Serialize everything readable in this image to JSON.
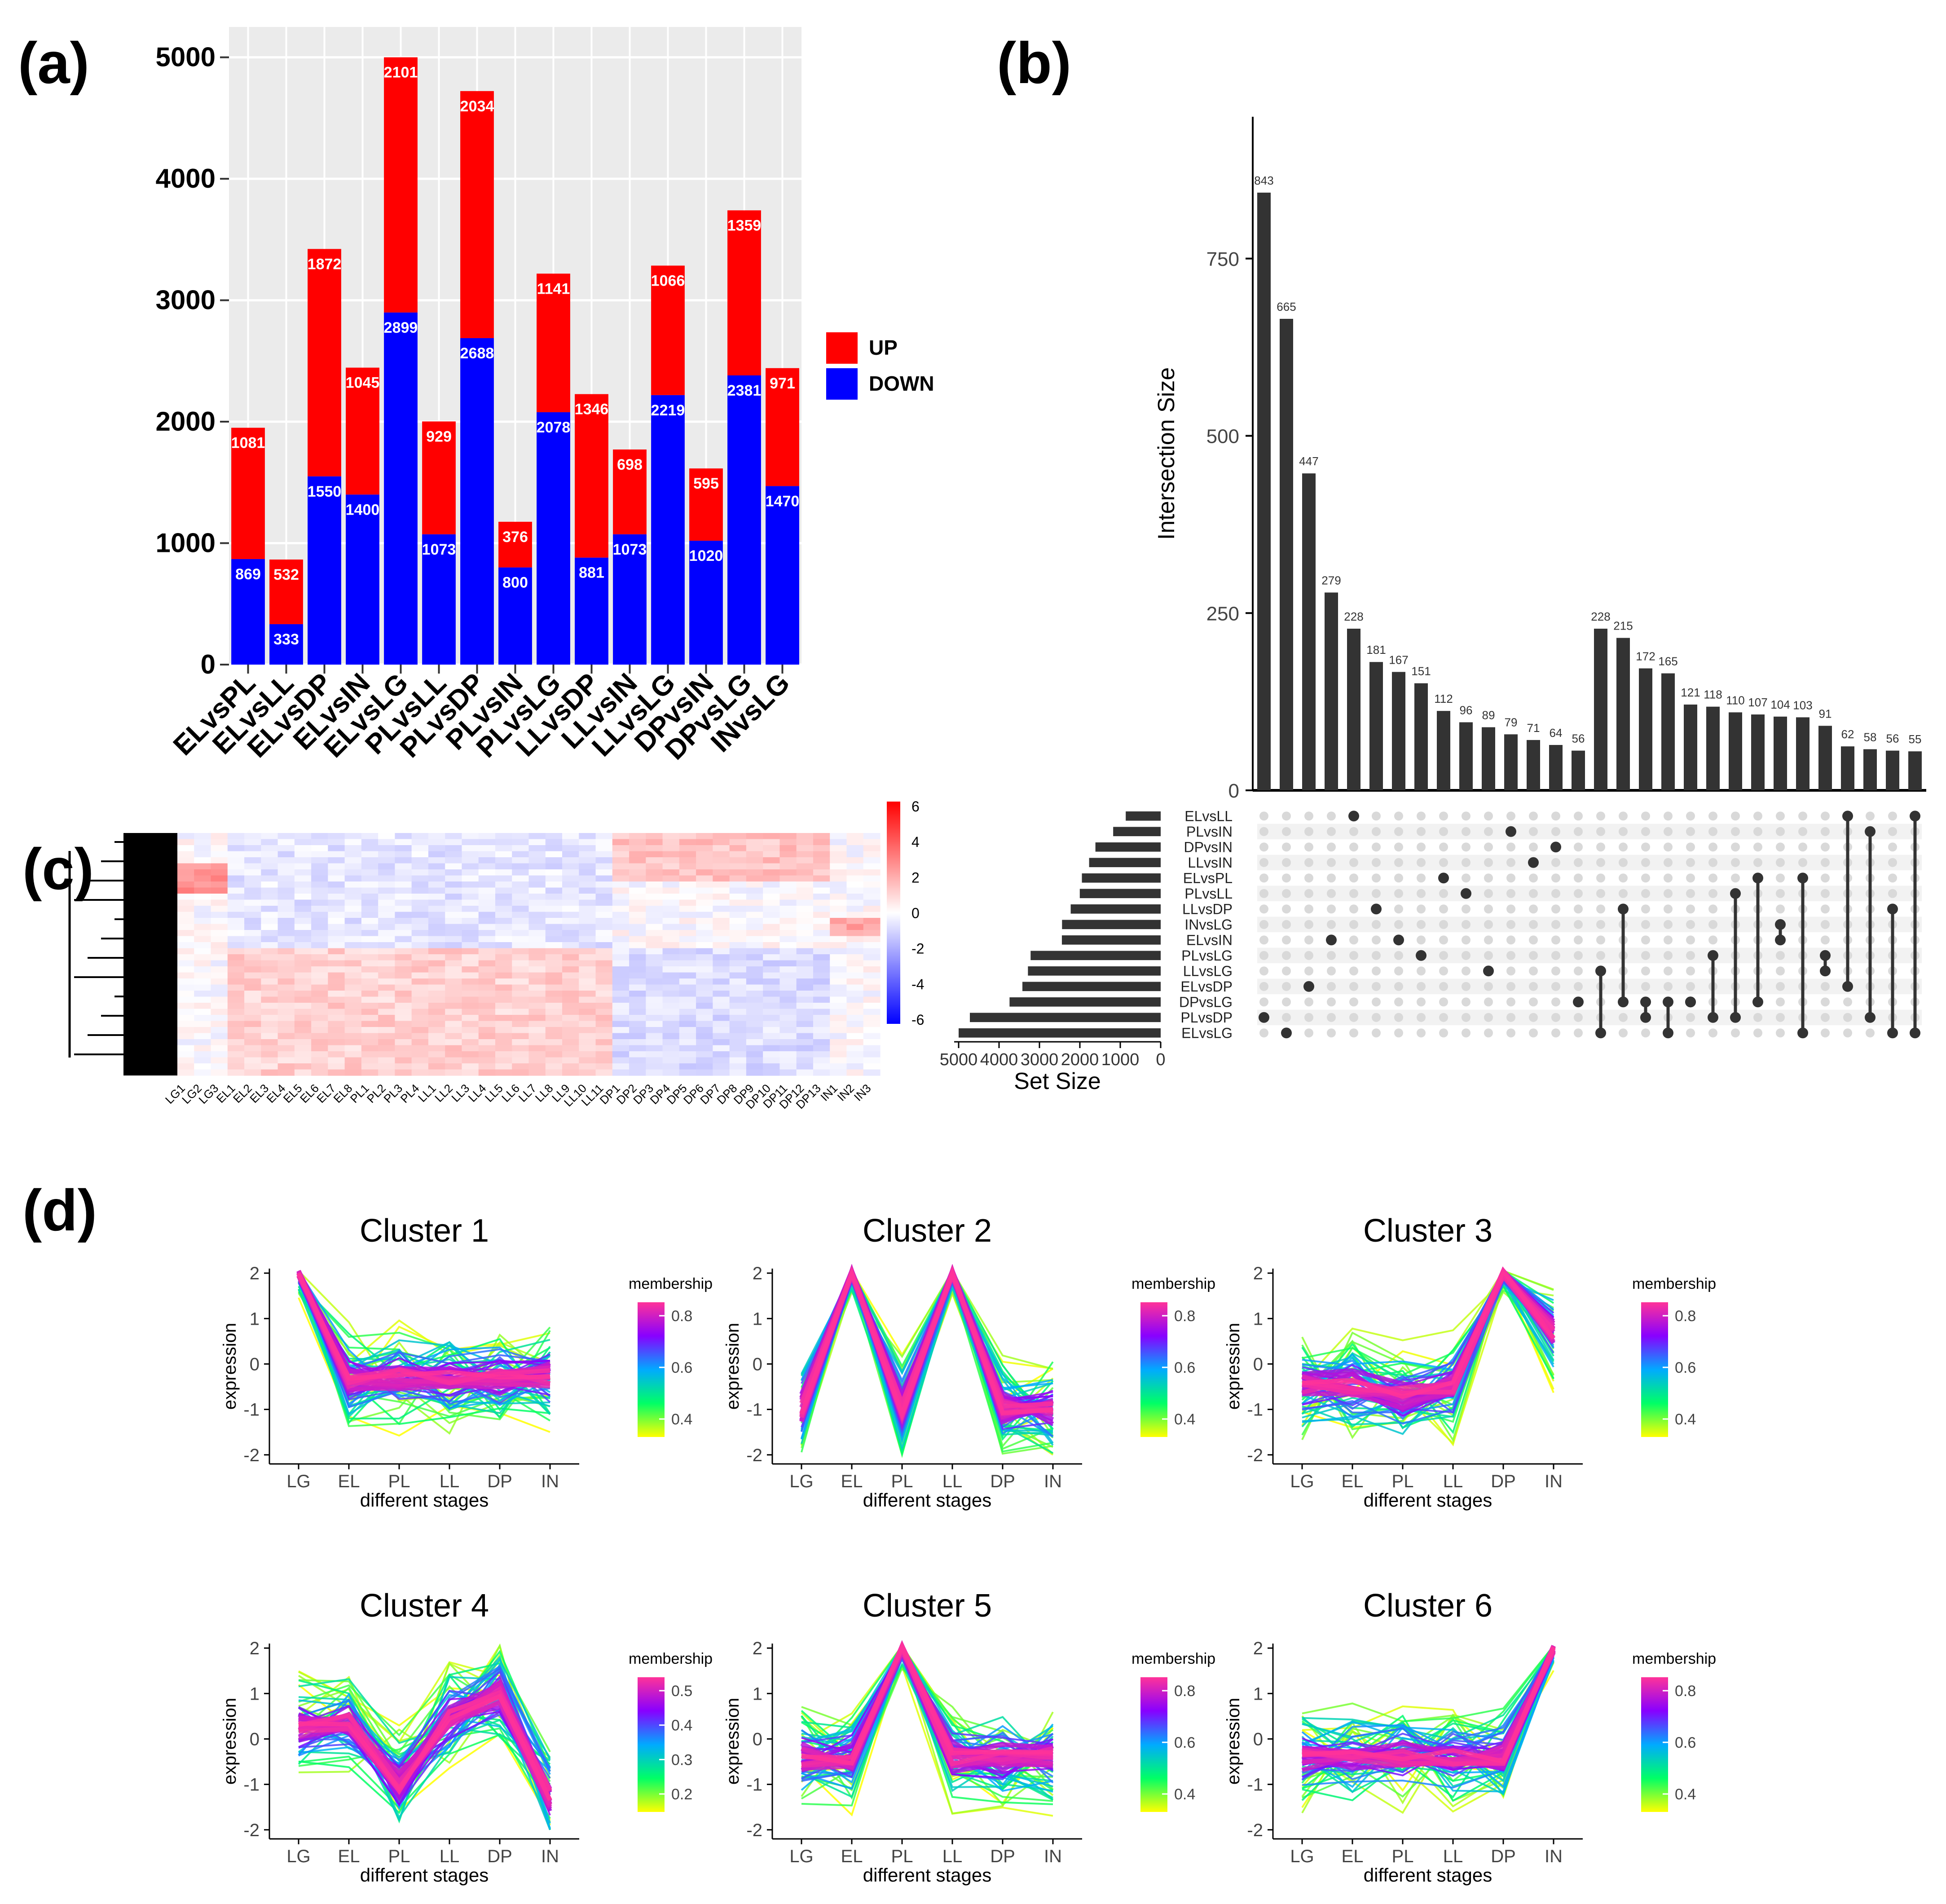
{
  "panel_labels": {
    "a": "(a)",
    "b": "(b)",
    "c": "(c)",
    "d": "(d)"
  },
  "colors": {
    "up": "#ff0000",
    "down": "#0000ff",
    "panel_bg": "#ebebeb",
    "bar_dark": "#333333",
    "dot_off": "#d9d9d9"
  },
  "chart_data": [
    {
      "id": "a",
      "type": "bar",
      "stacked": true,
      "categories": [
        "ELvsPL",
        "ELvsLL",
        "ELvsDP",
        "ELvsIN",
        "ELvsLG",
        "PLvsLL",
        "PLvsDP",
        "PLvsIN",
        "PLvsLG",
        "LLvsDP",
        "LLvsIN",
        "LLvsLG",
        "DPvsIN",
        "DPvsLG",
        "INvsLG"
      ],
      "series": [
        {
          "name": "DOWN",
          "values": [
            869,
            333,
            1550,
            1400,
            2899,
            1073,
            2688,
            800,
            2078,
            881,
            1073,
            2219,
            1020,
            2381,
            1470
          ]
        },
        {
          "name": "UP",
          "values": [
            1081,
            532,
            1872,
            1045,
            2101,
            929,
            2034,
            376,
            1141,
            1346,
            698,
            1066,
            595,
            1359,
            971
          ]
        }
      ],
      "yticks": [
        "0",
        "1000",
        "2000",
        "3000",
        "4000",
        "5000"
      ],
      "ylim": [
        0,
        5250
      ],
      "legend": [
        "UP",
        "DOWN"
      ],
      "title": "",
      "xlabel": "",
      "ylabel": ""
    },
    {
      "id": "b",
      "type": "bar",
      "subtype": "upset",
      "ylabel": "Intersection Size",
      "yticks": [
        "0",
        "250",
        "500",
        "750"
      ],
      "ylim": [
        0,
        950
      ],
      "values": [
        843,
        665,
        447,
        279,
        228,
        181,
        167,
        151,
        112,
        96,
        89,
        79,
        71,
        64,
        56,
        228,
        215,
        172,
        165,
        121,
        118,
        110,
        107,
        104,
        103,
        91,
        62,
        58,
        56,
        55
      ],
      "sets": [
        "ELvsLL",
        "PLvsIN",
        "DPvsIN",
        "LLvsIN",
        "ELvsPL",
        "PLvsLL",
        "LLvsDP",
        "INvsLG",
        "ELvsIN",
        "PLvsLG",
        "LLvsLG",
        "ELvsDP",
        "DPvsLG",
        "PLvsDP",
        "ELvsLG"
      ],
      "set_sizes": [
        865,
        1176,
        1615,
        1771,
        1950,
        2002,
        2227,
        2441,
        2445,
        3219,
        3285,
        3422,
        3740,
        4722,
        5000
      ],
      "set_size_label": "Set Size",
      "set_size_ticks": [
        "5000",
        "4000",
        "3000",
        "2000",
        "1000",
        "0"
      ],
      "memberships": [
        [
          13
        ],
        [
          14
        ],
        [
          11
        ],
        [
          8
        ],
        [
          0
        ],
        [
          6
        ],
        [
          8
        ],
        [
          9
        ],
        [
          4
        ],
        [
          5
        ],
        [
          10
        ],
        [
          1
        ],
        [
          3
        ],
        [
          2
        ],
        [
          12
        ],
        [
          14,
          10
        ],
        [
          12,
          6
        ],
        [
          13,
          12
        ],
        [
          14,
          12
        ],
        [
          12,
          12
        ],
        [
          13,
          9
        ],
        [
          13,
          5
        ],
        [
          12,
          4
        ],
        [
          8,
          7
        ],
        [
          14,
          4
        ],
        [
          9,
          10
        ],
        [
          11,
          0
        ],
        [
          13,
          1
        ],
        [
          14,
          6
        ],
        [
          14,
          0
        ]
      ]
    },
    {
      "id": "c",
      "type": "heatmap",
      "columns": [
        "LG1",
        "LG2",
        "LG3",
        "EL1",
        "EL2",
        "EL3",
        "EL4",
        "EL5",
        "EL6",
        "EL7",
        "EL8",
        "PL1",
        "PL2",
        "PL3",
        "PL4",
        "LL1",
        "LL2",
        "LL3",
        "LL4",
        "LL5",
        "LL6",
        "LL7",
        "LL8",
        "LL9",
        "LL10",
        "LL11",
        "DP1",
        "DP2",
        "DP3",
        "DP4",
        "DP5",
        "DP6",
        "DP7",
        "DP8",
        "DP9",
        "DP10",
        "DP11",
        "DP12",
        "DP13",
        "IN1",
        "IN2",
        "IN3"
      ],
      "scale_ticks": [
        "6",
        "4",
        "2",
        "0",
        "-2",
        "-4",
        "-6"
      ],
      "scale_colors": [
        "#ff0000",
        "#ffffff",
        "#0000ff"
      ]
    },
    {
      "id": "d",
      "type": "line",
      "x": [
        "LG",
        "EL",
        "PL",
        "LL",
        "DP",
        "IN"
      ],
      "xlabel": "different stages",
      "ylabel": "expression",
      "yticks": [
        "-2",
        "-1",
        "0",
        "1",
        "2"
      ],
      "ylim": [
        -2.2,
        2.1
      ],
      "legend_title": "membership",
      "clusters": [
        {
          "title": "Cluster 1",
          "center": [
            2.0,
            -0.3,
            -0.3,
            -0.3,
            -0.3,
            -0.3
          ],
          "membership_ticks": [
            "0.4",
            "0.6",
            "0.8"
          ]
        },
        {
          "title": "Cluster 2",
          "center": [
            -1.0,
            2.0,
            -1.0,
            2.0,
            -1.0,
            -1.0
          ],
          "membership_ticks": [
            "0.4",
            "0.6",
            "0.8"
          ]
        },
        {
          "title": "Cluster 3",
          "center": [
            -0.5,
            -0.5,
            -0.7,
            -0.5,
            2.0,
            0.7
          ],
          "membership_ticks": [
            "0.4",
            "0.6",
            "0.8"
          ]
        },
        {
          "title": "Cluster 4",
          "center": [
            0.3,
            0.4,
            -1.0,
            0.5,
            1.0,
            -1.3
          ],
          "membership_ticks": [
            "0.2",
            "0.3",
            "0.4",
            "0.5"
          ]
        },
        {
          "title": "Cluster 5",
          "center": [
            -0.4,
            -0.4,
            2.0,
            -0.4,
            -0.4,
            -0.4
          ],
          "membership_ticks": [
            "0.4",
            "0.6",
            "0.8"
          ]
        },
        {
          "title": "Cluster 6",
          "center": [
            -0.4,
            -0.4,
            -0.4,
            -0.4,
            -0.4,
            2.0
          ],
          "membership_ticks": [
            "0.4",
            "0.6",
            "0.8"
          ]
        }
      ]
    }
  ]
}
